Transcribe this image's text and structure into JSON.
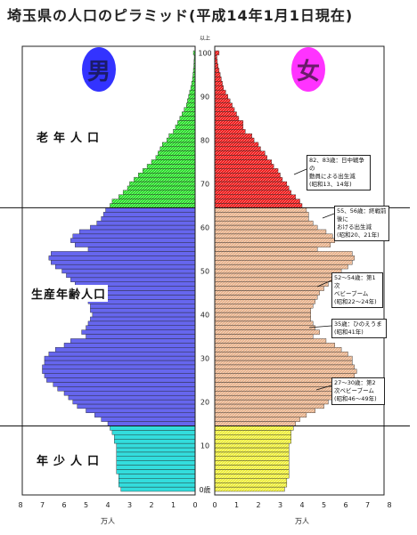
{
  "title": "埼玉県の人口のピラミッド(平成14年1月1日現在)",
  "labels": {
    "male": "男",
    "female": "女",
    "over_age": "以上",
    "age_zero": "0歳",
    "unit_left": "万人",
    "unit_right": "万人"
  },
  "zones": {
    "old": "老年人口",
    "working": "生産年齢人口",
    "young": "年少人口"
  },
  "notes": {
    "n1": "82、83歳：日中戦争の\n動員による出生減\n(昭和13、14年)",
    "n2": "55、56歳：終戦前後に\nおける出生減\n(昭和20、21年)",
    "n3": "52〜54歳：第1次\nベビーブーム\n(昭和22〜24年)",
    "n4": "35歳：ひのえうま\n(昭和41年)",
    "n5": "27〜30歳：第2\n次ベビーブーム\n(昭和46〜49年)"
  },
  "colors": {
    "old": "#22dd22",
    "old_f": "#ee1111",
    "working_m": "#6666ee",
    "working_f": "#e8b088",
    "young_m": "#33dddd",
    "young_f": "#eeee33",
    "outline": "#222222"
  },
  "chart_data": {
    "type": "bar",
    "orientation": "horizontal-pyramid",
    "unit": "万人",
    "age_ticks": [
      0,
      10,
      20,
      30,
      40,
      50,
      60,
      70,
      80,
      90,
      100
    ],
    "x_ticks_left": [
      8,
      7,
      6,
      5,
      4,
      3,
      2,
      1,
      0
    ],
    "x_ticks_right": [
      0,
      1,
      2,
      3,
      4,
      5,
      6,
      7,
      8
    ],
    "xlim": [
      0,
      8
    ],
    "ages": [
      0,
      1,
      2,
      3,
      4,
      5,
      6,
      7,
      8,
      9,
      10,
      11,
      12,
      13,
      14,
      15,
      16,
      17,
      18,
      19,
      20,
      21,
      22,
      23,
      24,
      25,
      26,
      27,
      28,
      29,
      30,
      31,
      32,
      33,
      34,
      35,
      36,
      37,
      38,
      39,
      40,
      41,
      42,
      43,
      44,
      45,
      46,
      47,
      48,
      49,
      50,
      51,
      52,
      53,
      54,
      55,
      56,
      57,
      58,
      59,
      60,
      61,
      62,
      63,
      64,
      65,
      66,
      67,
      68,
      69,
      70,
      71,
      72,
      73,
      74,
      75,
      76,
      77,
      78,
      79,
      80,
      81,
      82,
      83,
      84,
      85,
      86,
      87,
      88,
      89,
      90,
      91,
      92,
      93,
      94,
      95,
      96,
      97,
      98,
      99,
      100
    ],
    "series": [
      {
        "name": "男",
        "values": [
          3.4,
          3.5,
          3.5,
          3.5,
          3.6,
          3.6,
          3.6,
          3.6,
          3.6,
          3.6,
          3.6,
          3.7,
          3.7,
          3.8,
          3.9,
          4.0,
          4.3,
          4.6,
          5.0,
          5.4,
          5.6,
          5.8,
          6.0,
          6.3,
          6.5,
          6.8,
          6.9,
          7.0,
          7.0,
          6.9,
          6.9,
          6.7,
          6.4,
          6.0,
          5.7,
          5.0,
          5.2,
          5.0,
          4.9,
          4.8,
          4.7,
          4.8,
          4.8,
          4.9,
          5.0,
          5.1,
          5.3,
          5.5,
          5.7,
          5.9,
          6.1,
          6.4,
          6.6,
          6.7,
          6.6,
          4.9,
          5.5,
          5.7,
          5.6,
          5.3,
          4.8,
          4.5,
          4.3,
          4.2,
          4.1,
          3.9,
          3.8,
          3.5,
          3.3,
          3.1,
          3.0,
          2.8,
          2.6,
          2.4,
          2.2,
          2.0,
          1.8,
          1.7,
          1.6,
          1.5,
          1.3,
          1.2,
          1.0,
          0.9,
          0.8,
          0.7,
          0.6,
          0.5,
          0.4,
          0.35,
          0.3,
          0.25,
          0.2,
          0.16,
          0.12,
          0.1,
          0.08,
          0.06,
          0.05,
          0.04,
          0.08
        ]
      },
      {
        "name": "女",
        "values": [
          3.2,
          3.3,
          3.3,
          3.4,
          3.4,
          3.4,
          3.4,
          3.4,
          3.4,
          3.4,
          3.4,
          3.5,
          3.5,
          3.5,
          3.6,
          3.7,
          3.9,
          4.2,
          4.6,
          5.0,
          5.2,
          5.4,
          5.6,
          5.8,
          6.0,
          6.3,
          6.4,
          6.5,
          6.4,
          6.3,
          6.3,
          6.1,
          5.8,
          5.5,
          5.1,
          4.5,
          4.8,
          4.6,
          4.5,
          4.4,
          4.4,
          4.4,
          4.5,
          4.6,
          4.7,
          4.8,
          5.0,
          5.2,
          5.4,
          5.6,
          5.8,
          6.1,
          6.3,
          6.4,
          6.3,
          4.7,
          5.3,
          5.5,
          5.4,
          5.1,
          4.7,
          4.5,
          4.3,
          4.3,
          4.2,
          4.0,
          3.9,
          3.7,
          3.5,
          3.4,
          3.3,
          3.1,
          3.0,
          2.9,
          2.7,
          2.6,
          2.4,
          2.3,
          2.1,
          2.0,
          1.8,
          1.7,
          1.4,
          1.3,
          1.3,
          1.1,
          1.0,
          0.9,
          0.8,
          0.7,
          0.6,
          0.5,
          0.4,
          0.35,
          0.3,
          0.25,
          0.2,
          0.15,
          0.12,
          0.1,
          0.2
        ]
      }
    ],
    "age_groups": [
      {
        "name": "年少人口",
        "from": 0,
        "to": 14
      },
      {
        "name": "生産年齢人口",
        "from": 15,
        "to": 64
      },
      {
        "name": "老年人口",
        "from": 65,
        "to": 100
      }
    ]
  }
}
